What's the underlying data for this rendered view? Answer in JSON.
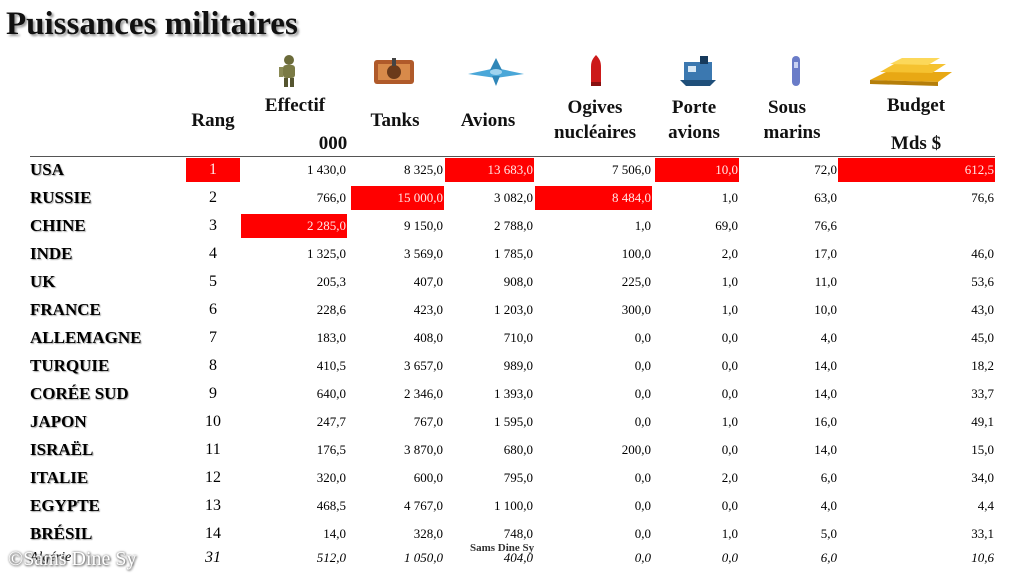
{
  "title": "Puissances militaires",
  "colors": {
    "highlight": "#ff0000"
  },
  "icons": [
    {
      "col": "effectif",
      "name": "soldier-icon"
    },
    {
      "col": "tanks",
      "name": "tank-icon"
    },
    {
      "col": "avions",
      "name": "fighter-jet-icon"
    },
    {
      "col": "ogives",
      "name": "warhead-icon"
    },
    {
      "col": "porte",
      "name": "aircraft-carrier-icon"
    },
    {
      "col": "sous",
      "name": "submarine-icon"
    },
    {
      "col": "budget",
      "name": "gold-bars-icon"
    }
  ],
  "headers": {
    "rang": "Rang",
    "effectif": "Effectif",
    "effectif_unit": "000",
    "tanks": "Tanks",
    "avions": "Avions",
    "ogives_1": "Ogives",
    "ogives_2": "nucléaires",
    "porte_1": "Porte",
    "porte_2": "avions",
    "sous_1": "Sous",
    "sous_2": "marins",
    "budget": "Budget",
    "budget_unit": "Mds $"
  },
  "rows": [
    {
      "country": "USA",
      "rank": "1",
      "effectif": "1 430,0",
      "tanks": "8 325,0",
      "avions": "13 683,0",
      "ogives": "7 506,0",
      "porte": "10,0",
      "sous": "72,0",
      "budget": "612,5"
    },
    {
      "country": "RUSSIE",
      "rank": "2",
      "effectif": "766,0",
      "tanks": "15 000,0",
      "avions": "3 082,0",
      "ogives": "8 484,0",
      "porte": "1,0",
      "sous": "63,0",
      "budget": "76,6"
    },
    {
      "country": "CHINE",
      "rank": "3",
      "effectif": "2 285,0",
      "tanks": "9 150,0",
      "avions": "2 788,0",
      "ogives": "1,0",
      "porte": "69,0",
      "sous": "76,6",
      "budget": ""
    },
    {
      "country": "INDE",
      "rank": "4",
      "effectif": "1 325,0",
      "tanks": "3 569,0",
      "avions": "1 785,0",
      "ogives": "100,0",
      "porte": "2,0",
      "sous": "17,0",
      "budget": "46,0"
    },
    {
      "country": "UK",
      "rank": "5",
      "effectif": "205,3",
      "tanks": "407,0",
      "avions": "908,0",
      "ogives": "225,0",
      "porte": "1,0",
      "sous": "11,0",
      "budget": "53,6"
    },
    {
      "country": "FRANCE",
      "rank": "6",
      "effectif": "228,6",
      "tanks": "423,0",
      "avions": "1 203,0",
      "ogives": "300,0",
      "porte": "1,0",
      "sous": "10,0",
      "budget": "43,0"
    },
    {
      "country": "ALLEMAGNE",
      "rank": "7",
      "effectif": "183,0",
      "tanks": "408,0",
      "avions": "710,0",
      "ogives": "0,0",
      "porte": "0,0",
      "sous": "4,0",
      "budget": "45,0"
    },
    {
      "country": "TURQUIE",
      "rank": "8",
      "effectif": "410,5",
      "tanks": "3 657,0",
      "avions": "989,0",
      "ogives": "0,0",
      "porte": "0,0",
      "sous": "14,0",
      "budget": "18,2"
    },
    {
      "country": "CORÉE  SUD",
      "rank": "9",
      "effectif": "640,0",
      "tanks": "2 346,0",
      "avions": "1 393,0",
      "ogives": "0,0",
      "porte": "0,0",
      "sous": "14,0",
      "budget": "33,7"
    },
    {
      "country": "JAPON",
      "rank": "10",
      "effectif": "247,7",
      "tanks": "767,0",
      "avions": "1 595,0",
      "ogives": "0,0",
      "porte": "1,0",
      "sous": "16,0",
      "budget": "49,1"
    },
    {
      "country": "ISRAËL",
      "rank": "11",
      "effectif": "176,5",
      "tanks": "3 870,0",
      "avions": "680,0",
      "ogives": "200,0",
      "porte": "0,0",
      "sous": "14,0",
      "budget": "15,0"
    },
    {
      "country": "ITALIE",
      "rank": "12",
      "effectif": "320,0",
      "tanks": "600,0",
      "avions": "795,0",
      "ogives": "0,0",
      "porte": "2,0",
      "sous": "6,0",
      "budget": "34,0"
    },
    {
      "country": "EGYPTE",
      "rank": "13",
      "effectif": "468,5",
      "tanks": "4 767,0",
      "avions": "1 100,0",
      "ogives": "0,0",
      "porte": "0,0",
      "sous": "4,0",
      "budget": "4,4"
    },
    {
      "country": "BRÉSIL",
      "rank": "14",
      "effectif": "14,0",
      "tanks": "328,0",
      "avions": "748,0",
      "ogives": "0,0",
      "porte": "1,0",
      "sous": "5,0",
      "budget": "33,1"
    },
    {
      "country": "Algérie",
      "rank": "31",
      "effectif": "512,0",
      "tanks": "1 050,0",
      "avions": "404,0",
      "ogives": "0,0",
      "porte": "0,0",
      "sous": "6,0",
      "budget": "10,6"
    }
  ],
  "highlights": [
    {
      "row": 0,
      "col": "rank"
    },
    {
      "row": 0,
      "col": "avions"
    },
    {
      "row": 0,
      "col": "porte"
    },
    {
      "row": 0,
      "col": "budget"
    },
    {
      "row": 1,
      "col": "tanks"
    },
    {
      "row": 1,
      "col": "ogives"
    },
    {
      "row": 2,
      "col": "effectif"
    }
  ],
  "watermark": "©Sams Dine Sy",
  "footer_credit": "Sams Dine Sy"
}
